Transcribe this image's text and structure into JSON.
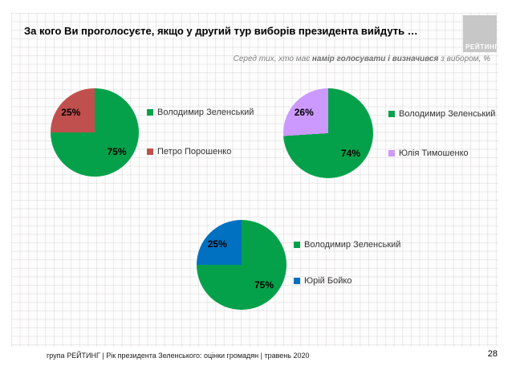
{
  "page": {
    "title": "За кого Ви проголосуєте, якщо у другий тур виборів президента вийдуть …",
    "subtitle": {
      "prefix": "Серед тих, хто має ",
      "bold": "намір голосувати і визначився",
      "suffix": " з вибором, %"
    },
    "logo_text": "РЕЙТИНГ",
    "footer_text": "група РЕЙТИНГ |  Рік президента Зеленського: оцінки громадян | травень 2020",
    "page_number": "28"
  },
  "colors": {
    "green": "#05A14A",
    "red": "#C0504D",
    "lavender": "#CC99FF",
    "blue": "#0070C0"
  },
  "chart_data": [
    {
      "type": "pie",
      "matchup": "Зеленський vs Порошенко",
      "start_angle_deg": 0,
      "direction": "clockwise",
      "legend_position": "right",
      "slices": [
        {
          "label": "Володимир Зеленський",
          "value": 75,
          "value_label": "75%",
          "color": "#05A14A"
        },
        {
          "label": "Петро Порошенко",
          "value": 25,
          "value_label": "25%",
          "color": "#C0504D"
        }
      ]
    },
    {
      "type": "pie",
      "matchup": "Зеленський vs Тимошенко",
      "start_angle_deg": 0,
      "direction": "clockwise",
      "legend_position": "right",
      "slices": [
        {
          "label": "Володимир Зеленський",
          "value": 74,
          "value_label": "74%",
          "color": "#05A14A"
        },
        {
          "label": "Юлія Тимошенко",
          "value": 26,
          "value_label": "26%",
          "color": "#CC99FF"
        }
      ]
    },
    {
      "type": "pie",
      "matchup": "Зеленський vs Бойко",
      "start_angle_deg": 0,
      "direction": "clockwise",
      "legend_position": "right",
      "slices": [
        {
          "label": "Володимир Зеленський",
          "value": 75,
          "value_label": "75%",
          "color": "#05A14A"
        },
        {
          "label": "Юрій Бойко",
          "value": 25,
          "value_label": "25%",
          "color": "#0070C0"
        }
      ]
    }
  ]
}
